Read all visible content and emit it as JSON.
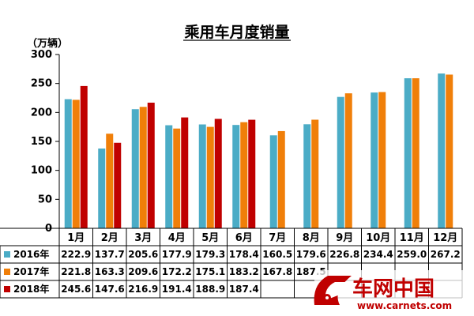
{
  "chart_data": {
    "type": "bar",
    "title": "乘用车月度销量",
    "ylabel": "（万辆）",
    "ylim": [
      0,
      300
    ],
    "yticks": [
      0,
      50,
      100,
      150,
      200,
      250,
      300
    ],
    "grid": false,
    "legend_position": "table-left",
    "categories": [
      "1月",
      "2月",
      "3月",
      "4月",
      "5月",
      "6月",
      "7月",
      "8月",
      "9月",
      "10月",
      "11月",
      "12月"
    ],
    "series": [
      {
        "name": "2016年",
        "color": "#4bacc6",
        "values": [
          222.9,
          137.7,
          205.6,
          177.9,
          179.3,
          178.4,
          160.5,
          179.6,
          226.8,
          234.4,
          259.0,
          267.2
        ],
        "table_values": [
          "222.9",
          "137.7",
          "205.6",
          "177.9",
          "179.3",
          "178.4",
          "160.5",
          "179.6",
          "226.8",
          "234.4",
          "259.0",
          "267.2"
        ]
      },
      {
        "name": "2017年",
        "color": "#f07f09",
        "values": [
          221.8,
          163.3,
          209.6,
          172.2,
          175.1,
          183.2,
          167.8,
          187.5,
          233.0,
          235.2,
          259.0,
          265.3
        ],
        "table_values": [
          "221.8",
          "163.3",
          "209.6",
          "172.2",
          "175.1",
          "183.2",
          "167.8",
          "187.5",
          "",
          "",
          "",
          ""
        ]
      },
      {
        "name": "2018年",
        "color": "#c00000",
        "values": [
          245.6,
          147.6,
          216.9,
          191.4,
          188.9,
          187.4,
          null,
          null,
          null,
          null,
          null,
          null
        ],
        "table_values": [
          "245.6",
          "147.6",
          "216.9",
          "191.4",
          "188.9",
          "187.4",
          "",
          "",
          "",
          "",
          "",
          ""
        ]
      }
    ]
  },
  "watermark": {
    "brand": "车网中国",
    "url": "www.carnets.com",
    "color": "#c00000"
  }
}
